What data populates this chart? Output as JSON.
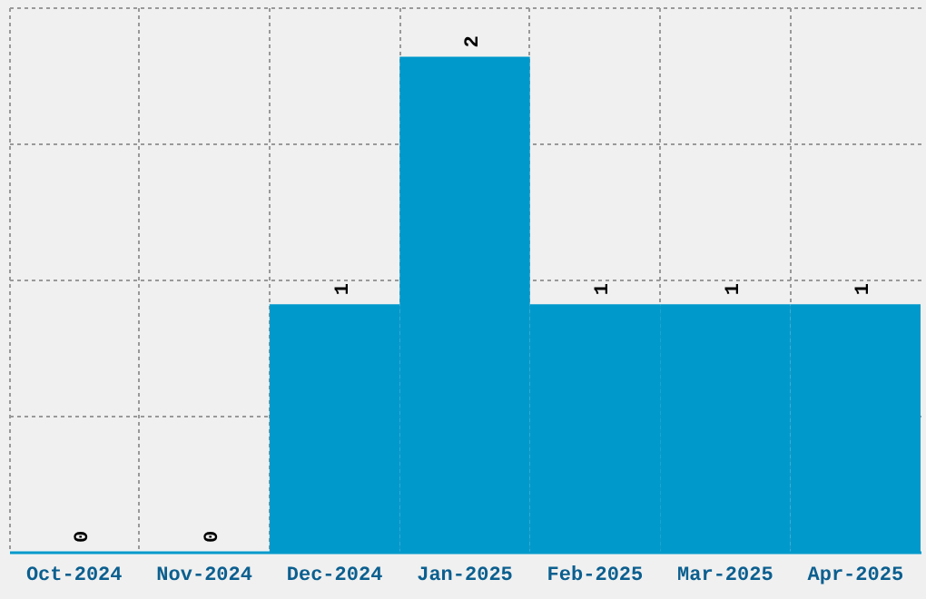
{
  "chart_data": {
    "type": "bar",
    "categories": [
      "Oct-2024",
      "Nov-2024",
      "Dec-2024",
      "Jan-2025",
      "Feb-2025",
      "Mar-2025",
      "Apr-2025"
    ],
    "values": [
      0,
      0,
      1,
      2,
      1,
      1,
      1
    ],
    "color": "#0099cc",
    "data_labels": true,
    "grid": true,
    "tick_labels": "x",
    "ylim": [
      0,
      2.2
    ],
    "yticks": [
      {
        "value": 0,
        "label": null
      },
      {
        "value": 0.55,
        "label": null
      },
      {
        "value": 1.1,
        "label": null
      },
      {
        "value": 1.65,
        "label": null
      },
      {
        "value": 2.2,
        "label": null
      }
    ]
  }
}
